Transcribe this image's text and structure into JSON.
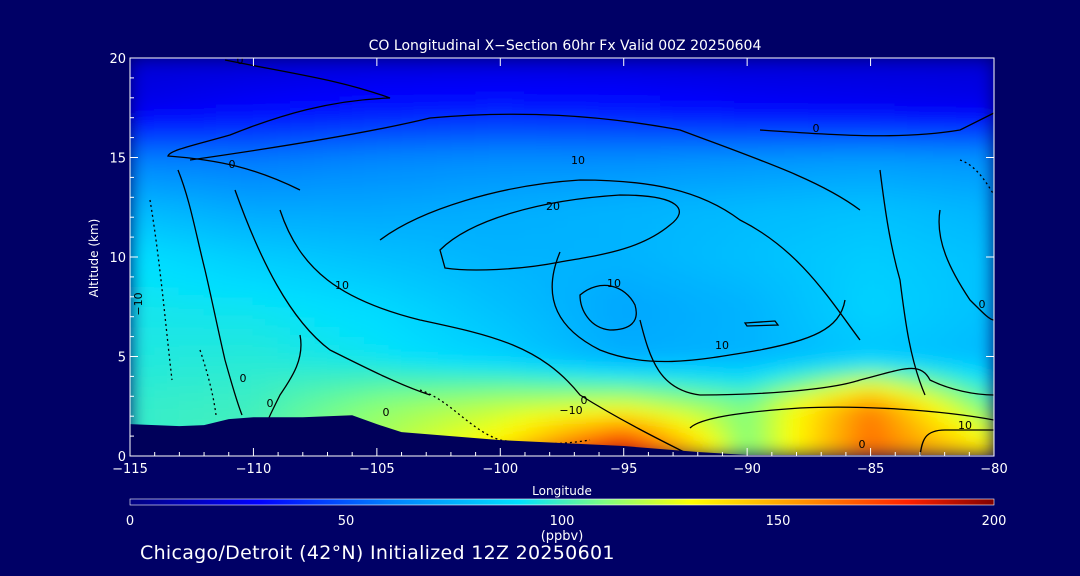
{
  "chart_data": {
    "type": "heatmap",
    "title": "CO Longitudinal X−Section 60hr  Fx Valid 00Z 20250604",
    "xlabel": "Longitude",
    "ylabel": "Altitude (km)",
    "xlim": [
      -115,
      -80
    ],
    "ylim": [
      0,
      20
    ],
    "x_ticks": [
      -115,
      -110,
      -105,
      -100,
      -95,
      -90,
      -85,
      -80
    ],
    "x_tick_labels": [
      "−115",
      "−110",
      "−105",
      "−100",
      "−95",
      "−90",
      "−85",
      "−80"
    ],
    "y_ticks": [
      0,
      5,
      10,
      15,
      20
    ],
    "y_tick_labels": [
      "0",
      "5",
      "10",
      "15",
      "20"
    ],
    "colorbar": {
      "label": "(ppbv)",
      "range": [
        0,
        200
      ],
      "ticks": [
        0,
        50,
        100,
        150,
        200
      ],
      "tick_labels": [
        "0",
        "50",
        "100",
        "150",
        "200"
      ]
    },
    "terrain_km": {
      "x": [
        -115,
        -114,
        -113,
        -112,
        -111,
        -110,
        -108,
        -106,
        -105,
        -104,
        -100,
        -95,
        -92,
        -90,
        -85,
        -80
      ],
      "y": [
        1.6,
        1.55,
        1.5,
        1.55,
        1.85,
        1.95,
        1.95,
        2.05,
        1.6,
        1.2,
        0.8,
        0.5,
        0.2,
        0.05,
        0.05,
        0.05
      ]
    },
    "co_field_ppbv": {
      "x": [
        -115,
        -110,
        -105,
        -100,
        -95,
        -90,
        -85,
        -80
      ],
      "y": [
        0,
        2.5,
        5,
        7.5,
        10,
        12.5,
        15,
        17.5,
        20
      ],
      "z": [
        [
          98,
          102,
          118,
          138,
          198,
          110,
          165,
          140
        ],
        [
          98,
          100,
          112,
          120,
          125,
          110,
          160,
          105
        ],
        [
          95,
          96,
          92,
          85,
          74,
          76,
          82,
          78
        ],
        [
          93,
          92,
          88,
          80,
          72,
          76,
          86,
          80
        ],
        [
          90,
          84,
          80,
          76,
          76,
          80,
          84,
          80
        ],
        [
          78,
          72,
          72,
          74,
          76,
          78,
          80,
          76
        ],
        [
          60,
          58,
          62,
          64,
          64,
          66,
          68,
          66
        ],
        [
          25,
          30,
          34,
          36,
          34,
          30,
          28,
          26
        ],
        [
          20,
          20,
          20,
          20,
          20,
          20,
          20,
          20
        ]
      ]
    },
    "contour_labels": [
      "0",
      "0",
      "0",
      "0",
      "0",
      "0",
      "−10",
      "−10",
      "10",
      "10",
      "10",
      "10",
      "10",
      "20"
    ]
  },
  "footer": "Chicago/Detroit (42°N) Initialized 12Z 20250601"
}
